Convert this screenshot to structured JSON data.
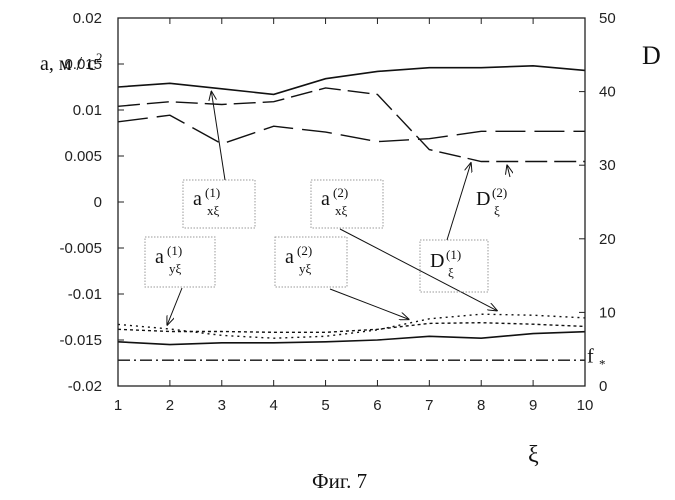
{
  "chart_data": {
    "type": "line",
    "caption": "Фиг. 7",
    "x": [
      1,
      2,
      3,
      4,
      5,
      6,
      7,
      8,
      9,
      10
    ],
    "x_ticks": [
      "1",
      "2",
      "3",
      "4",
      "5",
      "6",
      "7",
      "8",
      "9",
      "10"
    ],
    "xlabel": "ξ",
    "xlim": [
      1,
      10
    ],
    "y_left": {
      "label_main": "a, м / с",
      "label_sup": "2",
      "ylim": [
        -0.02,
        0.02
      ],
      "ticks": [
        {
          "value": 0.02,
          "label": "0.02"
        },
        {
          "value": 0.015,
          "label": "0.015"
        },
        {
          "value": 0.01,
          "label": "0.01"
        },
        {
          "value": 0.005,
          "label": "0.005"
        },
        {
          "value": 0,
          "label": "0"
        },
        {
          "value": -0.005,
          "label": "-0.005"
        },
        {
          "value": -0.01,
          "label": "-0.01"
        },
        {
          "value": -0.015,
          "label": "-0.015"
        },
        {
          "value": -0.02,
          "label": "-0.02"
        }
      ]
    },
    "y_right": {
      "label": "D",
      "ylim": [
        0,
        50
      ],
      "ticks": [
        {
          "value": 50,
          "label": "50"
        },
        {
          "value": 40,
          "label": "40"
        },
        {
          "value": 30,
          "label": "30"
        },
        {
          "value": 20,
          "label": "20"
        },
        {
          "value": 10,
          "label": "10"
        },
        {
          "value": 0,
          "label": "0"
        }
      ]
    },
    "series": [
      {
        "name": "a_xξ(1)",
        "axis": "left",
        "style": "solid",
        "values": [
          0.0125,
          0.0129,
          0.0123,
          0.0117,
          0.0134,
          0.0142,
          0.0146,
          0.0146,
          0.0148,
          0.0143
        ]
      },
      {
        "name": "a_xξ(2)",
        "axis": "left",
        "style": "dashed",
        "values": [
          0.0104,
          0.0109,
          0.0106,
          0.0109,
          0.0124,
          0.0117,
          0.0057,
          0.0044,
          0.0044,
          0.0044
        ]
      },
      {
        "name": "D_ξ(1)",
        "axis": "right",
        "style": "long-dash",
        "values": [
          35.9,
          36.8,
          32.9,
          35.3,
          34.5,
          33.2,
          33.6,
          34.6,
          34.6,
          34.6
        ]
      },
      {
        "name": "a_yξ(1)",
        "axis": "left",
        "style": "solid",
        "values": [
          -0.0152,
          -0.0155,
          -0.0153,
          -0.0153,
          -0.0152,
          -0.015,
          -0.0146,
          -0.0148,
          -0.0143,
          -0.0141
        ]
      },
      {
        "name": "a_yξ(2)",
        "axis": "left",
        "style": "dotted",
        "values": [
          -0.0133,
          -0.0138,
          -0.0145,
          -0.0148,
          -0.0146,
          -0.0139,
          -0.0127,
          -0.0122,
          -0.0123,
          -0.0126
        ]
      },
      {
        "name": "D_ξ(2)",
        "axis": "right",
        "style": "short-dot",
        "values": [
          7.7,
          7.4,
          7.4,
          7.3,
          7.3,
          7.7,
          8.5,
          8.6,
          8.4,
          8.1
        ]
      },
      {
        "name": "f_*",
        "axis": "right",
        "style": "dash-dot",
        "values": [
          3.5,
          3.5,
          3.5,
          3.5,
          3.5,
          3.5,
          3.5,
          3.5,
          3.5,
          3.5
        ]
      }
    ],
    "callouts": [
      {
        "id": "ax1",
        "main": "a",
        "sup": "(1)",
        "sub": "xξ",
        "boxed": true,
        "target": {
          "series": 0,
          "x": 2.8
        }
      },
      {
        "id": "ax2",
        "main": "a",
        "sup": "(2)",
        "sub": "xξ",
        "boxed": true,
        "target": {
          "series": 4,
          "x": 8.3
        }
      },
      {
        "id": "ay1",
        "main": "a",
        "sup": "(1)",
        "sub": "yξ",
        "boxed": true,
        "target": {
          "series": 4,
          "x": 1.95
        }
      },
      {
        "id": "ay2",
        "main": "a",
        "sup": "(2)",
        "sub": "yξ",
        "boxed": true,
        "target": {
          "series": 4,
          "x": 6.6
        }
      },
      {
        "id": "dx1",
        "main": "D",
        "sup": "(1)",
        "sub": "ξ",
        "boxed": true,
        "target": {
          "series": 1,
          "x": 7.8
        }
      },
      {
        "id": "dx2",
        "main": "D",
        "sup": "(2)",
        "sub": "ξ",
        "boxed": false,
        "target": {
          "series": 1,
          "x": 8.5
        }
      },
      {
        "id": "fstar",
        "main": "f",
        "sup": "",
        "sub": "*",
        "boxed": false,
        "target": null
      }
    ]
  }
}
